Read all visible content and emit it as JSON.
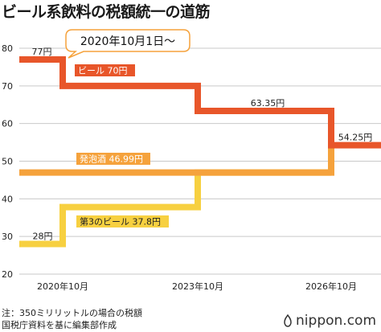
{
  "title": "ビール系飲料の税額統一の道筋",
  "colors": {
    "beer": "#E8562A",
    "happoshu": "#F5A23C",
    "third": "#F7D040",
    "grid": "#c9c9c9"
  },
  "chart_data": {
    "type": "line",
    "step": true,
    "ylim": [
      20,
      80
    ],
    "yticks": [
      20,
      30,
      40,
      50,
      60,
      70,
      80
    ],
    "x_ticks": [
      {
        "x": 2020,
        "label": "2020年10月"
      },
      {
        "x": 2023,
        "label": "2023年10月"
      },
      {
        "x": 2026,
        "label": "2026年10月"
      }
    ],
    "xlim": [
      2019,
      2027.2
    ],
    "series": [
      {
        "name": "ビール",
        "color": "#E8562A",
        "points": [
          [
            2019,
            77
          ],
          [
            2020,
            77
          ],
          [
            2020,
            70
          ],
          [
            2023,
            70
          ],
          [
            2023,
            63.35
          ],
          [
            2026,
            63.35
          ],
          [
            2026,
            54.25
          ],
          [
            2027.2,
            54.25
          ]
        ]
      },
      {
        "name": "発泡酒",
        "color": "#F5A23C",
        "points": [
          [
            2019,
            46.99
          ],
          [
            2026,
            46.99
          ],
          [
            2026,
            54.25
          ]
        ]
      },
      {
        "name": "第3のビール",
        "color": "#F7D040",
        "points": [
          [
            2019,
            28
          ],
          [
            2020,
            28
          ],
          [
            2020,
            37.8
          ],
          [
            2023,
            37.8
          ],
          [
            2023,
            46.99
          ],
          [
            2026,
            46.99
          ]
        ]
      }
    ],
    "labels": {
      "beer": "ビール 70円",
      "happoshu": "発泡酒 46.99円",
      "third": "第3のビール 37.8円"
    },
    "annotations": [
      "77円",
      "63.35円",
      "54.25円",
      "28円"
    ],
    "callout": "2020年10月1日〜"
  },
  "notes": [
    "注：350ミリリットルの場合の税額",
    "国税庁資料を基に編集部作成"
  ],
  "brand": "nippon.com"
}
